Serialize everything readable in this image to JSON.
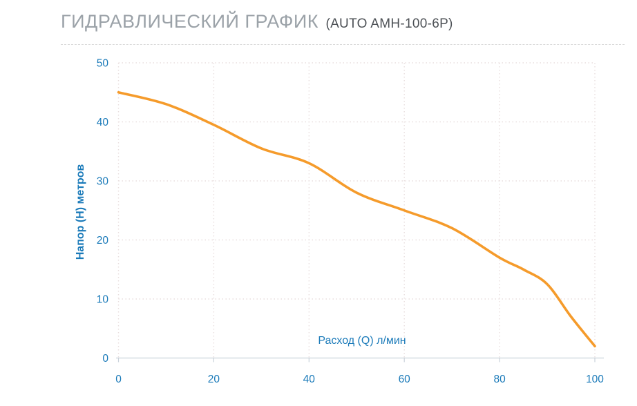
{
  "header": {
    "title": "ГИДРАВЛИЧЕСКИЙ ГРАФИК",
    "subtitle": "(AUTO AMH-100-6P)"
  },
  "colors": {
    "curve": "#f59b2b",
    "axis_text": "#1a7ab9",
    "grid": "#e8dede",
    "axis_line": "#c9d2da",
    "title_text": "#9ba2a8",
    "subtitle_text": "#4d5156"
  },
  "chart_data": {
    "type": "line",
    "title": "ГИДРАВЛИЧЕСКИЙ ГРАФИК (AUTO AMH-100-6P)",
    "xlabel": "Расход (Q) л/мин",
    "ylabel": "Напор (H) метров",
    "x": [
      0,
      10,
      20,
      30,
      40,
      50,
      60,
      70,
      80,
      85,
      90,
      95,
      100
    ],
    "series": [
      {
        "name": "Напор (H), м",
        "values": [
          45,
          43,
          39.5,
          35.5,
          33,
          28,
          25,
          22,
          17,
          15,
          12.5,
          7,
          2
        ]
      }
    ],
    "xlim": [
      0,
      100
    ],
    "ylim": [
      0,
      50
    ],
    "x_ticks": [
      0,
      20,
      40,
      60,
      80,
      100
    ],
    "y_ticks": [
      0,
      10,
      20,
      30,
      40,
      50
    ],
    "grid": "dotted",
    "legend": "none",
    "line_color": "#f59b2b"
  }
}
